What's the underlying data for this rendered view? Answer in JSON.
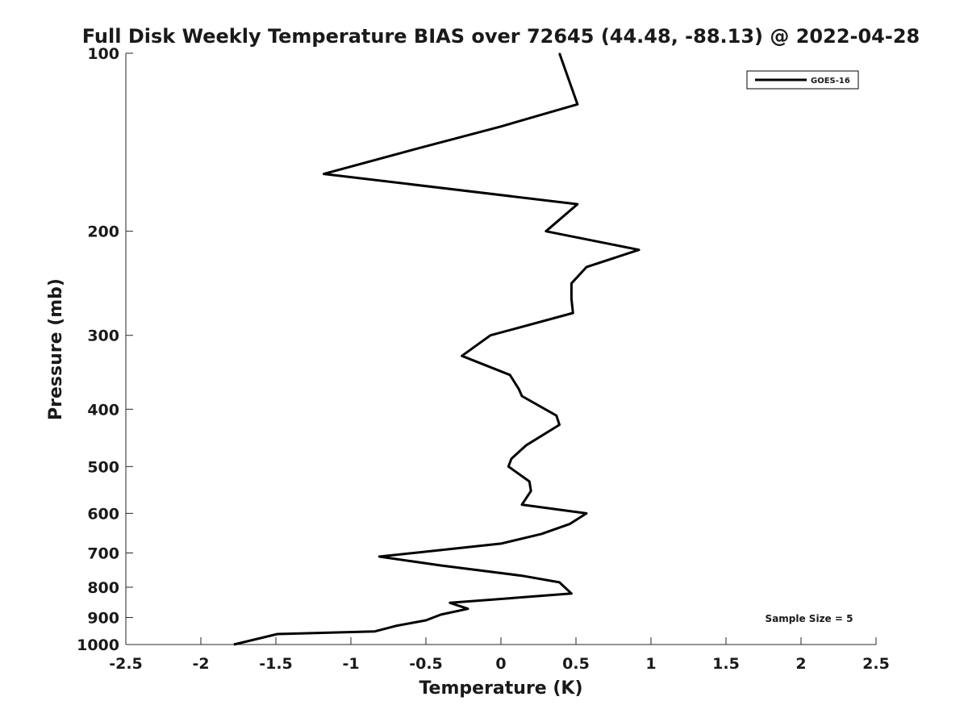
{
  "chart_data": {
    "type": "line",
    "title": "Full Disk Weekly Temperature BIAS over 72645 (44.48, -88.13) @ 2022-04-28",
    "xlabel": "Temperature (K)",
    "ylabel": "Pressure (mb)",
    "xlim": [
      -2.5,
      2.5
    ],
    "ylim": [
      1000,
      100
    ],
    "yscale": "log",
    "y_reversed": true,
    "xticks": [
      -2.5,
      -2,
      -1.5,
      -1,
      -0.5,
      0,
      0.5,
      1,
      1.5,
      2,
      2.5
    ],
    "xtick_labels": [
      "-2.5",
      "-2",
      "-1.5",
      "-1",
      "-0.5",
      "0",
      "0.5",
      "1",
      "1.5",
      "2",
      "2.5"
    ],
    "yticks": [
      100,
      200,
      300,
      400,
      500,
      600,
      700,
      800,
      900,
      1000
    ],
    "ytick_labels": [
      "100",
      "200",
      "300",
      "400",
      "500",
      "600",
      "700",
      "800",
      "900",
      "1000"
    ],
    "grid": false,
    "legend_position": "top-right",
    "annotation": "Sample Size = 5",
    "series": [
      {
        "name": "GOES-16",
        "color": "#000000",
        "points": [
          {
            "x": 0.39,
            "p": 100
          },
          {
            "x": 0.51,
            "p": 122
          },
          {
            "x": 0.0,
            "p": 133
          },
          {
            "x": -0.56,
            "p": 145
          },
          {
            "x": -1.18,
            "p": 160
          },
          {
            "x": 0.51,
            "p": 180
          },
          {
            "x": 0.3,
            "p": 200
          },
          {
            "x": 0.92,
            "p": 215
          },
          {
            "x": 0.57,
            "p": 230
          },
          {
            "x": 0.47,
            "p": 245
          },
          {
            "x": 0.47,
            "p": 260
          },
          {
            "x": 0.48,
            "p": 275
          },
          {
            "x": -0.07,
            "p": 300
          },
          {
            "x": -0.26,
            "p": 325
          },
          {
            "x": 0.06,
            "p": 350
          },
          {
            "x": 0.12,
            "p": 370
          },
          {
            "x": 0.14,
            "p": 380
          },
          {
            "x": 0.37,
            "p": 410
          },
          {
            "x": 0.39,
            "p": 425
          },
          {
            "x": 0.17,
            "p": 460
          },
          {
            "x": 0.07,
            "p": 485
          },
          {
            "x": 0.05,
            "p": 500
          },
          {
            "x": 0.19,
            "p": 530
          },
          {
            "x": 0.2,
            "p": 550
          },
          {
            "x": 0.14,
            "p": 580
          },
          {
            "x": 0.57,
            "p": 600
          },
          {
            "x": 0.46,
            "p": 625
          },
          {
            "x": 0.27,
            "p": 650
          },
          {
            "x": 0.0,
            "p": 675
          },
          {
            "x": -0.35,
            "p": 690
          },
          {
            "x": -0.81,
            "p": 710
          },
          {
            "x": -0.4,
            "p": 735
          },
          {
            "x": 0.14,
            "p": 765
          },
          {
            "x": 0.39,
            "p": 785
          },
          {
            "x": 0.47,
            "p": 820
          },
          {
            "x": -0.34,
            "p": 850
          },
          {
            "x": -0.22,
            "p": 870
          },
          {
            "x": -0.4,
            "p": 890
          },
          {
            "x": -0.5,
            "p": 910
          },
          {
            "x": -0.7,
            "p": 930
          },
          {
            "x": -0.84,
            "p": 950
          },
          {
            "x": -1.49,
            "p": 960
          },
          {
            "x": -1.78,
            "p": 1000
          }
        ]
      }
    ]
  }
}
